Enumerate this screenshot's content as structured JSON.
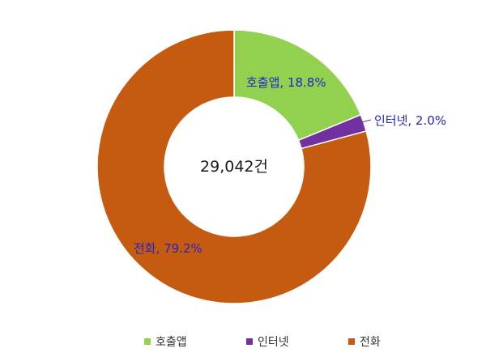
{
  "chart_data": {
    "type": "pie",
    "donut": true,
    "center_text": "29,042건",
    "slices": [
      {
        "name": "호출앱",
        "value": 18.8,
        "label": "호출앱, 18.8%",
        "color": "#92d050"
      },
      {
        "name": "인터넷",
        "value": 2.0,
        "label": "인터넷, 2.0%",
        "color": "#7030a0"
      },
      {
        "name": "전화",
        "value": 79.2,
        "label": "전화, 79.2%",
        "color": "#c55a11"
      }
    ],
    "label_color": "#2424c8",
    "legend": {
      "position": "bottom",
      "items": [
        "호출앱",
        "인터넷",
        "전화"
      ]
    }
  }
}
